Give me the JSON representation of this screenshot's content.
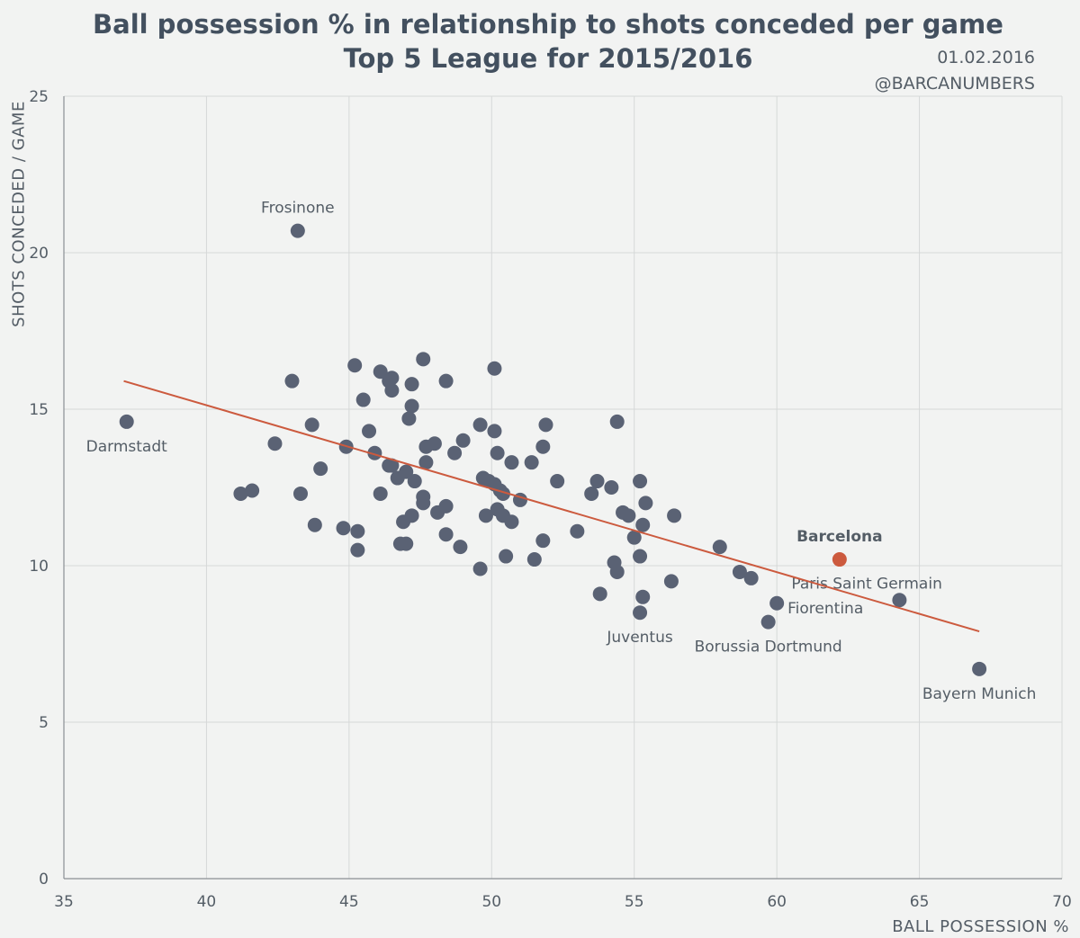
{
  "title": {
    "line1": "Ball possession % in relationship to shots conceded per game",
    "line2": "Top 5 League for 2015/2016"
  },
  "meta": {
    "date": "01.02.2016",
    "handle": "@BARCANUMBERS"
  },
  "colors": {
    "point": "#5a6274",
    "highlight": "#cc5a3e",
    "trend": "#cc5a3e",
    "grid": "#d6d8d8",
    "axis": "#8a8f94",
    "text": "#545d66"
  },
  "chart_data": {
    "type": "scatter",
    "title": "Ball possession % in relationship to shots conceded per game",
    "xlabel": "BALL POSSESSION %",
    "ylabel": "SHOTS CONCEDED / GAME",
    "xlim": [
      35,
      70
    ],
    "ylim": [
      0,
      25
    ],
    "xticks": [
      35,
      40,
      45,
      50,
      55,
      60,
      65,
      70
    ],
    "yticks": [
      0,
      5,
      10,
      15,
      20,
      25
    ],
    "grid": true,
    "trendline": {
      "x": [
        37.1,
        67.1
      ],
      "y": [
        15.9,
        7.9
      ]
    },
    "labeled_points": [
      {
        "name": "Frosinone",
        "x": 43.2,
        "y": 20.7,
        "label_pos": "above"
      },
      {
        "name": "Darmstadt",
        "x": 37.2,
        "y": 14.6,
        "label_pos": "below"
      },
      {
        "name": "Barcelona",
        "x": 62.2,
        "y": 10.2,
        "label_pos": "above",
        "highlight": true
      },
      {
        "name": "Paris Saint Germain",
        "x": 64.3,
        "y": 8.9,
        "label_pos": "above-left"
      },
      {
        "name": "Fiorentina",
        "x": 60.0,
        "y": 8.8,
        "label_pos": "right"
      },
      {
        "name": "Borussia Dortmund",
        "x": 59.7,
        "y": 8.2,
        "label_pos": "below"
      },
      {
        "name": "Juventus",
        "x": 55.2,
        "y": 8.5,
        "label_pos": "below"
      },
      {
        "name": "Bayern Munich",
        "x": 67.1,
        "y": 6.7,
        "label_pos": "below"
      }
    ],
    "points": [
      {
        "x": 43.0,
        "y": 15.9
      },
      {
        "x": 45.2,
        "y": 16.4
      },
      {
        "x": 46.1,
        "y": 16.2
      },
      {
        "x": 46.5,
        "y": 16.0
      },
      {
        "x": 46.4,
        "y": 15.9
      },
      {
        "x": 46.5,
        "y": 15.6
      },
      {
        "x": 47.2,
        "y": 15.8
      },
      {
        "x": 47.6,
        "y": 16.6
      },
      {
        "x": 48.4,
        "y": 15.9
      },
      {
        "x": 50.1,
        "y": 16.3
      },
      {
        "x": 45.5,
        "y": 15.3
      },
      {
        "x": 47.2,
        "y": 15.1
      },
      {
        "x": 47.1,
        "y": 14.7
      },
      {
        "x": 43.7,
        "y": 14.5
      },
      {
        "x": 45.7,
        "y": 14.3
      },
      {
        "x": 42.4,
        "y": 13.9
      },
      {
        "x": 44.9,
        "y": 13.8
      },
      {
        "x": 45.9,
        "y": 13.6
      },
      {
        "x": 47.7,
        "y": 13.8
      },
      {
        "x": 48.0,
        "y": 13.9
      },
      {
        "x": 48.7,
        "y": 13.6
      },
      {
        "x": 49.0,
        "y": 14.0
      },
      {
        "x": 49.6,
        "y": 14.5
      },
      {
        "x": 50.1,
        "y": 14.3
      },
      {
        "x": 50.2,
        "y": 13.6
      },
      {
        "x": 51.9,
        "y": 14.5
      },
      {
        "x": 51.8,
        "y": 13.8
      },
      {
        "x": 54.4,
        "y": 14.6
      },
      {
        "x": 47.7,
        "y": 13.3
      },
      {
        "x": 46.4,
        "y": 13.2
      },
      {
        "x": 46.5,
        "y": 13.2
      },
      {
        "x": 47.0,
        "y": 13.0
      },
      {
        "x": 46.7,
        "y": 12.8
      },
      {
        "x": 47.3,
        "y": 12.7
      },
      {
        "x": 44.0,
        "y": 13.1
      },
      {
        "x": 50.7,
        "y": 13.3
      },
      {
        "x": 51.4,
        "y": 13.3
      },
      {
        "x": 49.7,
        "y": 12.8
      },
      {
        "x": 49.9,
        "y": 12.7
      },
      {
        "x": 50.1,
        "y": 12.6
      },
      {
        "x": 50.3,
        "y": 12.4
      },
      {
        "x": 50.4,
        "y": 12.3
      },
      {
        "x": 51.0,
        "y": 12.1
      },
      {
        "x": 52.3,
        "y": 12.7
      },
      {
        "x": 53.7,
        "y": 12.7
      },
      {
        "x": 53.5,
        "y": 12.3
      },
      {
        "x": 54.2,
        "y": 12.5
      },
      {
        "x": 55.2,
        "y": 12.7
      },
      {
        "x": 55.4,
        "y": 12.0
      },
      {
        "x": 41.2,
        "y": 12.3
      },
      {
        "x": 41.6,
        "y": 12.4
      },
      {
        "x": 43.3,
        "y": 12.3
      },
      {
        "x": 46.1,
        "y": 12.3
      },
      {
        "x": 47.6,
        "y": 12.2
      },
      {
        "x": 47.6,
        "y": 12.0
      },
      {
        "x": 48.4,
        "y": 11.9
      },
      {
        "x": 48.1,
        "y": 11.7
      },
      {
        "x": 47.2,
        "y": 11.6
      },
      {
        "x": 46.9,
        "y": 11.4
      },
      {
        "x": 49.8,
        "y": 11.6
      },
      {
        "x": 50.2,
        "y": 11.8
      },
      {
        "x": 50.4,
        "y": 11.6
      },
      {
        "x": 50.7,
        "y": 11.4
      },
      {
        "x": 53.0,
        "y": 11.1
      },
      {
        "x": 54.6,
        "y": 11.7
      },
      {
        "x": 54.8,
        "y": 11.6
      },
      {
        "x": 55.3,
        "y": 11.3
      },
      {
        "x": 56.4,
        "y": 11.6
      },
      {
        "x": 43.8,
        "y": 11.3
      },
      {
        "x": 44.8,
        "y": 11.2
      },
      {
        "x": 45.3,
        "y": 11.1
      },
      {
        "x": 48.4,
        "y": 11.0
      },
      {
        "x": 51.8,
        "y": 10.8
      },
      {
        "x": 55.0,
        "y": 10.9
      },
      {
        "x": 45.3,
        "y": 10.5
      },
      {
        "x": 46.8,
        "y": 10.7
      },
      {
        "x": 47.0,
        "y": 10.7
      },
      {
        "x": 48.9,
        "y": 10.6
      },
      {
        "x": 50.5,
        "y": 10.3
      },
      {
        "x": 51.5,
        "y": 10.2
      },
      {
        "x": 55.2,
        "y": 10.3
      },
      {
        "x": 58.0,
        "y": 10.6
      },
      {
        "x": 49.6,
        "y": 9.9
      },
      {
        "x": 54.3,
        "y": 10.1
      },
      {
        "x": 54.4,
        "y": 9.8
      },
      {
        "x": 56.3,
        "y": 9.5
      },
      {
        "x": 58.7,
        "y": 9.8
      },
      {
        "x": 59.1,
        "y": 9.6
      },
      {
        "x": 53.8,
        "y": 9.1
      },
      {
        "x": 55.3,
        "y": 9.0
      }
    ]
  }
}
